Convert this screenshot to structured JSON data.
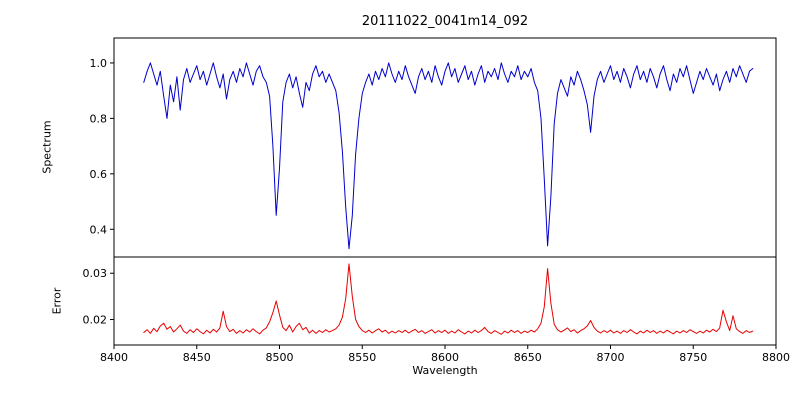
{
  "chart_data": {
    "type": "line",
    "title": "20111022_0041m14_092",
    "xlabel": "Wavelength",
    "xlim": [
      8400,
      8800
    ],
    "xticks": [
      8400,
      8450,
      8500,
      8550,
      8600,
      8650,
      8700,
      8750,
      8800
    ],
    "xtick_labels": [
      "8400",
      "8450",
      "8500",
      "8550",
      "8600",
      "8650",
      "8700",
      "8750",
      "8800"
    ],
    "x_start": 8418,
    "x_step": 2,
    "legend": "none",
    "grid": false,
    "panels": [
      {
        "name": "spectrum",
        "ylabel": "Spectrum",
        "color": "#0000cd",
        "ylim": [
          0.3,
          1.09
        ],
        "yticks": [
          0.4,
          0.6,
          0.8,
          1.0
        ],
        "ytick_labels": [
          "0.4",
          "0.6",
          "0.8",
          "1.0"
        ],
        "values": [
          0.93,
          0.97,
          1.0,
          0.96,
          0.92,
          0.97,
          0.88,
          0.8,
          0.92,
          0.86,
          0.95,
          0.83,
          0.94,
          0.98,
          0.93,
          0.96,
          0.99,
          0.94,
          0.97,
          0.92,
          0.96,
          1.0,
          0.95,
          0.91,
          0.96,
          0.87,
          0.94,
          0.97,
          0.93,
          0.98,
          0.95,
          1.0,
          0.96,
          0.92,
          0.97,
          0.99,
          0.95,
          0.93,
          0.88,
          0.7,
          0.45,
          0.62,
          0.86,
          0.93,
          0.96,
          0.91,
          0.95,
          0.89,
          0.84,
          0.93,
          0.9,
          0.96,
          0.99,
          0.95,
          0.97,
          0.93,
          0.96,
          0.93,
          0.9,
          0.82,
          0.68,
          0.48,
          0.33,
          0.45,
          0.67,
          0.8,
          0.89,
          0.93,
          0.96,
          0.92,
          0.97,
          0.94,
          0.98,
          0.95,
          1.0,
          0.96,
          0.93,
          0.97,
          0.94,
          0.99,
          0.95,
          0.92,
          0.89,
          0.95,
          0.98,
          0.94,
          0.97,
          0.93,
          0.99,
          0.95,
          0.92,
          0.97,
          1.0,
          0.95,
          0.98,
          0.93,
          0.96,
          0.99,
          0.94,
          0.97,
          0.92,
          0.96,
          0.99,
          0.93,
          0.97,
          0.95,
          0.98,
          0.94,
          1.0,
          0.96,
          0.93,
          0.97,
          0.95,
          0.99,
          0.94,
          0.97,
          0.95,
          0.98,
          0.93,
          0.9,
          0.8,
          0.58,
          0.34,
          0.52,
          0.78,
          0.89,
          0.94,
          0.91,
          0.88,
          0.95,
          0.92,
          0.97,
          0.94,
          0.9,
          0.85,
          0.75,
          0.88,
          0.94,
          0.97,
          0.93,
          0.96,
          0.99,
          0.94,
          0.97,
          0.93,
          0.98,
          0.95,
          0.91,
          0.96,
          0.99,
          0.94,
          0.97,
          0.93,
          0.98,
          0.95,
          0.91,
          0.96,
          0.99,
          0.94,
          0.9,
          0.96,
          0.93,
          0.98,
          0.95,
          0.99,
          0.94,
          0.89,
          0.93,
          0.97,
          0.94,
          0.98,
          0.95,
          0.92,
          0.96,
          0.9,
          0.94,
          0.97,
          0.93,
          0.98,
          0.95,
          0.99,
          0.96,
          0.93,
          0.97,
          0.98
        ]
      },
      {
        "name": "error",
        "ylabel": "Error",
        "color": "#e60000",
        "ylim": [
          0.0145,
          0.0335
        ],
        "yticks": [
          0.02,
          0.03
        ],
        "ytick_labels": [
          "0.02",
          "0.03"
        ],
        "values": [
          0.0172,
          0.0178,
          0.017,
          0.0181,
          0.0174,
          0.0186,
          0.0192,
          0.0179,
          0.0185,
          0.0173,
          0.018,
          0.0188,
          0.0175,
          0.017,
          0.0178,
          0.0172,
          0.018,
          0.0174,
          0.0169,
          0.0177,
          0.0171,
          0.0179,
          0.0173,
          0.0182,
          0.0218,
          0.0185,
          0.0174,
          0.0179,
          0.017,
          0.0176,
          0.0171,
          0.0178,
          0.0173,
          0.018,
          0.0174,
          0.0169,
          0.0177,
          0.0182,
          0.0195,
          0.0215,
          0.024,
          0.021,
          0.0183,
          0.0176,
          0.0188,
          0.0173,
          0.0185,
          0.0192,
          0.0178,
          0.0183,
          0.0171,
          0.0177,
          0.017,
          0.0176,
          0.0172,
          0.0178,
          0.0173,
          0.0176,
          0.018,
          0.0188,
          0.0205,
          0.0245,
          0.032,
          0.025,
          0.02,
          0.0185,
          0.0176,
          0.0172,
          0.0177,
          0.0171,
          0.0176,
          0.018,
          0.0173,
          0.0177,
          0.017,
          0.0175,
          0.0171,
          0.0176,
          0.0172,
          0.0177,
          0.0171,
          0.0175,
          0.0179,
          0.0172,
          0.0176,
          0.017,
          0.0174,
          0.0178,
          0.0171,
          0.0176,
          0.0172,
          0.0177,
          0.017,
          0.0175,
          0.0171,
          0.0178,
          0.0173,
          0.0169,
          0.0175,
          0.0171,
          0.0177,
          0.0172,
          0.0176,
          0.0183,
          0.0174,
          0.017,
          0.0176,
          0.0172,
          0.0168,
          0.0175,
          0.0171,
          0.0177,
          0.0172,
          0.0176,
          0.017,
          0.0175,
          0.0172,
          0.0177,
          0.0173,
          0.018,
          0.0192,
          0.0228,
          0.031,
          0.0235,
          0.019,
          0.0178,
          0.0173,
          0.0177,
          0.0182,
          0.0174,
          0.0178,
          0.0171,
          0.0176,
          0.018,
          0.0186,
          0.0198,
          0.0183,
          0.0175,
          0.0171,
          0.0176,
          0.0172,
          0.0177,
          0.0171,
          0.0175,
          0.017,
          0.0176,
          0.0172,
          0.0178,
          0.0173,
          0.0169,
          0.0175,
          0.0171,
          0.0177,
          0.0172,
          0.0176,
          0.017,
          0.0175,
          0.0171,
          0.0177,
          0.0173,
          0.0169,
          0.0175,
          0.0171,
          0.0176,
          0.0172,
          0.0178,
          0.0174,
          0.017,
          0.0175,
          0.0171,
          0.0177,
          0.0173,
          0.0179,
          0.0174,
          0.0182,
          0.022,
          0.0195,
          0.0176,
          0.0208,
          0.018,
          0.0174,
          0.017,
          0.0176,
          0.0172,
          0.0175
        ]
      }
    ]
  }
}
